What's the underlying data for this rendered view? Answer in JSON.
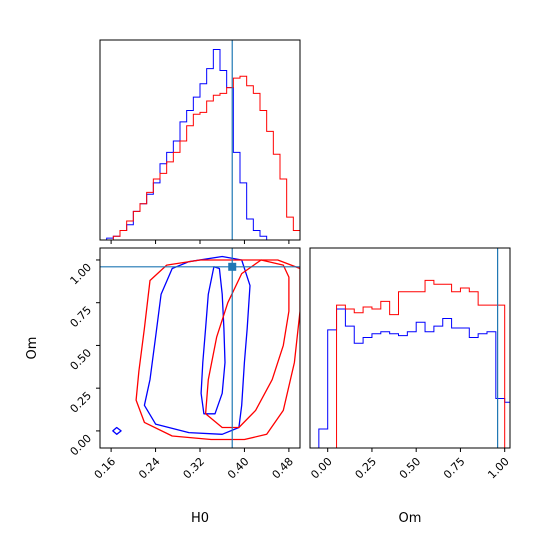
{
  "chart_data": {
    "type": "corner",
    "parameters": [
      "H0",
      "Om"
    ],
    "truth": {
      "H0": 0.378,
      "Om": 0.96
    },
    "colors": {
      "series_a": "#0000ff",
      "series_b": "#ff0000",
      "truth": "#1f77b4"
    },
    "axes": {
      "h0_hist": {
        "xlim": [
          0.14,
          0.5
        ],
        "ylim": [
          0,
          1
        ],
        "grid": false
      },
      "joint": {
        "xlim": [
          0.14,
          0.5
        ],
        "ylim": [
          -0.1,
          1.07
        ],
        "xlabel": "H0",
        "ylabel": "Om",
        "xticks": [
          0.16,
          0.24,
          0.32,
          0.4,
          0.48
        ],
        "xtick_labels": [
          "0.16",
          "0.24",
          "0.32",
          "0.40",
          "0.48"
        ],
        "yticks": [
          0.0,
          0.25,
          0.5,
          0.75,
          1.0
        ],
        "ytick_labels": [
          "0.00",
          "0.25",
          "0.50",
          "0.75",
          "1.00"
        ],
        "grid": false
      },
      "om_hist": {
        "xlim": [
          -0.1,
          1.03
        ],
        "ylim": [
          0,
          1
        ],
        "xlabel": "Om",
        "xticks": [
          0.0,
          0.25,
          0.5,
          0.75,
          1.0
        ],
        "xtick_labels": [
          "0.00",
          "0.25",
          "0.50",
          "0.75",
          "1.00"
        ],
        "grid": false
      }
    },
    "h0_histogram": {
      "bins": [
        0.14,
        0.152,
        0.164,
        0.176,
        0.188,
        0.2,
        0.212,
        0.224,
        0.236,
        0.248,
        0.26,
        0.272,
        0.284,
        0.296,
        0.308,
        0.32,
        0.332,
        0.344,
        0.356,
        0.368,
        0.38,
        0.392,
        0.404,
        0.416,
        0.428,
        0.44,
        0.452,
        0.464,
        0.476,
        0.488,
        0.5
      ],
      "series": [
        {
          "color": "#0000ff",
          "values": [
            0.0,
            0.01,
            0.02,
            0.05,
            0.08,
            0.15,
            0.19,
            0.24,
            0.3,
            0.4,
            0.46,
            0.52,
            0.62,
            0.68,
            0.75,
            0.82,
            0.9,
            1.0,
            0.89,
            0.8,
            0.46,
            0.3,
            0.11,
            0.05,
            0.02,
            0.0,
            0.0,
            0.0,
            0.0,
            0.0
          ]
        },
        {
          "color": "#ff0000",
          "values": [
            0.0,
            0.0,
            0.02,
            0.05,
            0.1,
            0.15,
            0.19,
            0.25,
            0.32,
            0.35,
            0.41,
            0.46,
            0.52,
            0.6,
            0.66,
            0.67,
            0.73,
            0.76,
            0.77,
            0.8,
            0.85,
            0.86,
            0.81,
            0.77,
            0.68,
            0.57,
            0.45,
            0.32,
            0.12,
            0.05
          ]
        }
      ]
    },
    "om_histogram": {
      "bins": [
        -0.1,
        -0.05,
        0.0,
        0.05,
        0.1,
        0.15,
        0.2,
        0.25,
        0.3,
        0.35,
        0.4,
        0.45,
        0.5,
        0.55,
        0.6,
        0.65,
        0.7,
        0.75,
        0.8,
        0.85,
        0.9,
        0.95,
        1.0,
        1.03
      ],
      "series": [
        {
          "color": "#0000ff",
          "values": [
            0.0,
            0.1,
            0.62,
            0.73,
            0.64,
            0.55,
            0.58,
            0.6,
            0.61,
            0.6,
            0.59,
            0.61,
            0.66,
            0.61,
            0.64,
            0.68,
            0.63,
            0.63,
            0.58,
            0.6,
            0.61,
            0.26,
            0.24
          ]
        },
        {
          "color": "#ff0000",
          "values": [
            0.0,
            0.0,
            0.0,
            0.75,
            0.73,
            0.71,
            0.74,
            0.73,
            0.77,
            0.7,
            0.82,
            0.82,
            0.82,
            0.88,
            0.86,
            0.86,
            0.82,
            0.84,
            0.82,
            0.75,
            0.75,
            0.75,
            0.0
          ]
        }
      ]
    },
    "contours": [
      {
        "color": "#0000ff",
        "level": "inner",
        "points": [
          [
            0.327,
            0.1
          ],
          [
            0.347,
            0.1
          ],
          [
            0.36,
            0.22
          ],
          [
            0.365,
            0.4
          ],
          [
            0.363,
            0.6
          ],
          [
            0.36,
            0.8
          ],
          [
            0.355,
            0.95
          ],
          [
            0.345,
            0.96
          ],
          [
            0.335,
            0.8
          ],
          [
            0.33,
            0.6
          ],
          [
            0.325,
            0.4
          ],
          [
            0.322,
            0.22
          ]
        ]
      },
      {
        "color": "#0000ff",
        "level": "outer",
        "points": [
          [
            0.24,
            0.04
          ],
          [
            0.3,
            -0.01
          ],
          [
            0.36,
            -0.02
          ],
          [
            0.39,
            0.02
          ],
          [
            0.395,
            0.15
          ],
          [
            0.4,
            0.4
          ],
          [
            0.405,
            0.6
          ],
          [
            0.41,
            0.85
          ],
          [
            0.395,
            1.0
          ],
          [
            0.36,
            1.02
          ],
          [
            0.3,
            0.99
          ],
          [
            0.27,
            0.95
          ],
          [
            0.25,
            0.8
          ],
          [
            0.24,
            0.55
          ],
          [
            0.23,
            0.3
          ],
          [
            0.22,
            0.15
          ]
        ]
      },
      {
        "color": "#0000ff",
        "level": "island",
        "points": [
          [
            0.163,
            0.0
          ],
          [
            0.17,
            -0.02
          ],
          [
            0.178,
            0.0
          ],
          [
            0.17,
            0.02
          ]
        ]
      },
      {
        "color": "#ff0000",
        "level": "inner",
        "points": [
          [
            0.33,
            0.1
          ],
          [
            0.36,
            0.02
          ],
          [
            0.39,
            0.02
          ],
          [
            0.42,
            0.12
          ],
          [
            0.45,
            0.3
          ],
          [
            0.47,
            0.5
          ],
          [
            0.48,
            0.7
          ],
          [
            0.48,
            0.9
          ],
          [
            0.47,
            0.97
          ],
          [
            0.43,
            1.0
          ],
          [
            0.395,
            0.92
          ],
          [
            0.37,
            0.75
          ],
          [
            0.35,
            0.55
          ],
          [
            0.335,
            0.3
          ]
        ]
      },
      {
        "color": "#ff0000",
        "level": "outer",
        "points": [
          [
            0.22,
            0.05
          ],
          [
            0.27,
            -0.03
          ],
          [
            0.34,
            -0.05
          ],
          [
            0.4,
            -0.05
          ],
          [
            0.44,
            -0.02
          ],
          [
            0.47,
            0.12
          ],
          [
            0.49,
            0.4
          ],
          [
            0.5,
            0.7
          ],
          [
            0.5,
            0.95
          ],
          [
            0.46,
            1.0
          ],
          [
            0.4,
            1.0
          ],
          [
            0.32,
            1.0
          ],
          [
            0.26,
            0.97
          ],
          [
            0.23,
            0.88
          ],
          [
            0.22,
            0.6
          ],
          [
            0.21,
            0.35
          ],
          [
            0.205,
            0.18
          ]
        ]
      }
    ]
  }
}
